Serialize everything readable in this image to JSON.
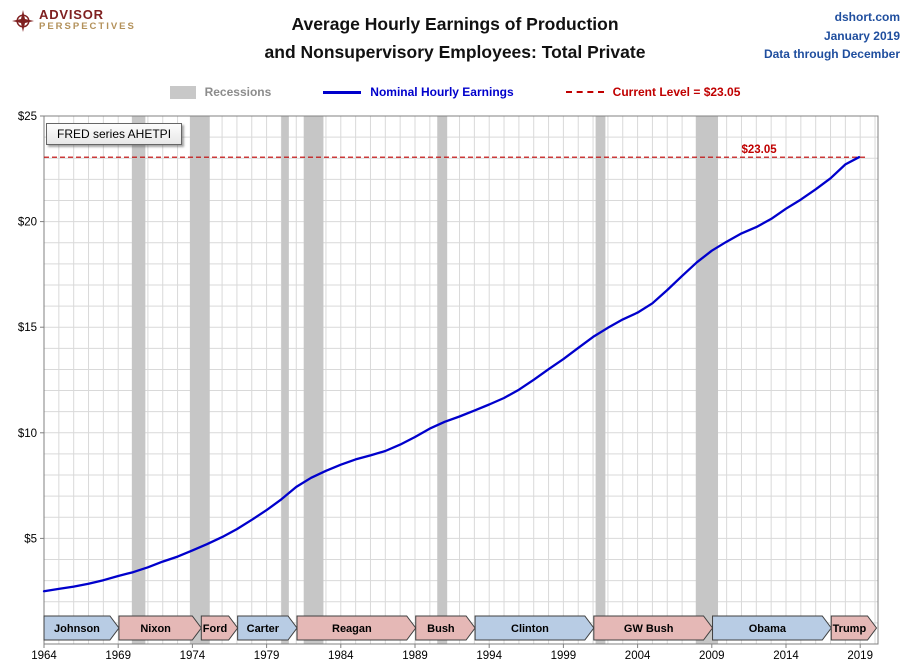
{
  "header": {
    "logo_line1": "ADVISOR",
    "logo_line2": "PERSPECTIVES",
    "title_line1": "Average Hourly Earnings of Production",
    "title_line2": "and Nonsupervisory Employees: Total Private",
    "source_site": "dshort.com",
    "source_date": "January 2019",
    "source_note": "Data through December"
  },
  "legend": {
    "recessions": "Recessions",
    "nominal": "Nominal Hourly Earnings",
    "current": "Current Level = $23.05"
  },
  "annotations": {
    "fred_label": "FRED series AHETPI",
    "current_level_label": "$23.05"
  },
  "chart_data": {
    "type": "line",
    "title": "Average Hourly Earnings of Production and Nonsupervisory Employees: Total Private",
    "xlabel": "",
    "ylabel": "",
    "xlim": [
      1964,
      2020.2
    ],
    "ylim": [
      0,
      25
    ],
    "x_ticks": [
      1964,
      1969,
      1974,
      1979,
      1984,
      1989,
      1994,
      1999,
      2004,
      2009,
      2014,
      2019
    ],
    "y_ticks": [
      5,
      10,
      15,
      20,
      25
    ],
    "y_tick_prefix": "$",
    "grid": "on",
    "legend_position": "top",
    "current_level": 23.05,
    "series": [
      {
        "name": "Nominal Hourly Earnings",
        "x": [
          1964,
          1965,
          1966,
          1967,
          1968,
          1969,
          1970,
          1971,
          1972,
          1973,
          1974,
          1975,
          1976,
          1977,
          1978,
          1979,
          1980,
          1981,
          1982,
          1983,
          1984,
          1985,
          1986,
          1987,
          1988,
          1989,
          1990,
          1991,
          1992,
          1993,
          1994,
          1995,
          1996,
          1997,
          1998,
          1999,
          2000,
          2001,
          2002,
          2003,
          2004,
          2005,
          2006,
          2007,
          2008,
          2009,
          2010,
          2011,
          2012,
          2013,
          2014,
          2015,
          2016,
          2017,
          2018,
          2018.92
        ],
        "y": [
          2.5,
          2.61,
          2.72,
          2.85,
          3.02,
          3.22,
          3.4,
          3.63,
          3.9,
          4.14,
          4.43,
          4.73,
          5.06,
          5.44,
          5.88,
          6.34,
          6.85,
          7.44,
          7.87,
          8.2,
          8.49,
          8.74,
          8.93,
          9.14,
          9.44,
          9.8,
          10.2,
          10.52,
          10.77,
          11.05,
          11.34,
          11.65,
          12.04,
          12.51,
          13.01,
          13.49,
          14.02,
          14.54,
          14.97,
          15.37,
          15.69,
          16.13,
          16.76,
          17.43,
          18.08,
          18.62,
          19.05,
          19.44,
          19.74,
          20.13,
          20.61,
          21.04,
          21.53,
          22.05,
          22.71,
          23.05
        ]
      }
    ],
    "recessions": [
      [
        1969.92,
        1970.83
      ],
      [
        1973.83,
        1975.17
      ],
      [
        1980.0,
        1980.5
      ],
      [
        1981.5,
        1982.83
      ],
      [
        1990.5,
        1991.17
      ],
      [
        2001.17,
        2001.83
      ],
      [
        2007.92,
        2009.42
      ]
    ],
    "presidents": [
      {
        "name": "Johnson",
        "party": "D",
        "start": 1964,
        "end": 1969.05
      },
      {
        "name": "Nixon",
        "party": "R",
        "start": 1969.05,
        "end": 1974.6
      },
      {
        "name": "Ford",
        "party": "R",
        "start": 1974.6,
        "end": 1977.05
      },
      {
        "name": "Carter",
        "party": "D",
        "start": 1977.05,
        "end": 1981.05
      },
      {
        "name": "Reagan",
        "party": "R",
        "start": 1981.05,
        "end": 1989.05
      },
      {
        "name": "Bush",
        "party": "R",
        "start": 1989.05,
        "end": 1993.05
      },
      {
        "name": "Clinton",
        "party": "D",
        "start": 1993.05,
        "end": 2001.05
      },
      {
        "name": "GW Bush",
        "party": "R",
        "start": 2001.05,
        "end": 2009.05
      },
      {
        "name": "Obama",
        "party": "D",
        "start": 2009.05,
        "end": 2017.05
      },
      {
        "name": "Trump",
        "party": "R",
        "start": 2017.05,
        "end": 2020.1
      }
    ],
    "colors": {
      "line": "#0000cc",
      "current_level": "#c00000",
      "recession_band": "#c6c6c6",
      "dem": "#b8cce4",
      "rep": "#e5b8b6",
      "grid": "#d9d9d9",
      "axis": "#808080",
      "arrow_border": "#404040",
      "header_blue": "#1f4e9e",
      "logo_red": "#7f2020",
      "logo_gold": "#b3915a"
    }
  }
}
